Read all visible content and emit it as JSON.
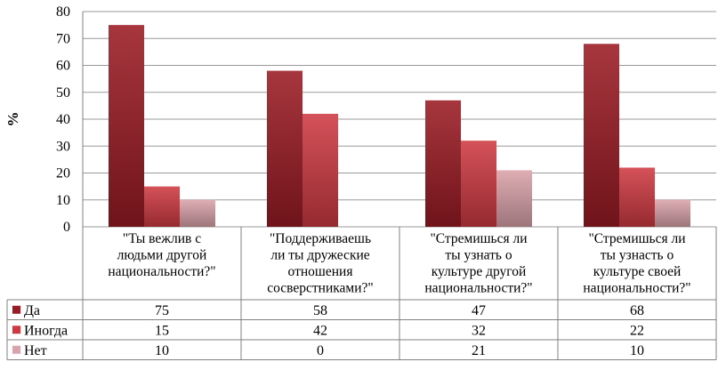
{
  "chart_data": {
    "type": "bar",
    "ylabel": "%",
    "ylim": [
      0,
      80
    ],
    "yticks": [
      0,
      10,
      20,
      30,
      40,
      50,
      60,
      70,
      80
    ],
    "grid": true,
    "legend": "data-table",
    "categories": [
      [
        "\"Ты вежлив с",
        "людьми другой",
        "национальности?\""
      ],
      [
        "\"Поддерживаешь",
        "ли ты дружеские",
        "отношения",
        "сосверстниками?\""
      ],
      [
        "\"Стремишься ли",
        "ты узнать о",
        "культуре другой",
        "национальности?\""
      ],
      [
        "\"Стремишься ли",
        "ты узнасть о",
        "культуре своей",
        "национальности?\""
      ]
    ],
    "series": [
      {
        "name": "Да",
        "values": [
          75,
          58,
          47,
          68
        ],
        "color": "#9b1b24"
      },
      {
        "name": "Иногда",
        "values": [
          15,
          42,
          32,
          22
        ],
        "color": "#cf3a42"
      },
      {
        "name": "Нет",
        "values": [
          10,
          0,
          21,
          10
        ],
        "color": "#d9a3aa"
      }
    ]
  }
}
